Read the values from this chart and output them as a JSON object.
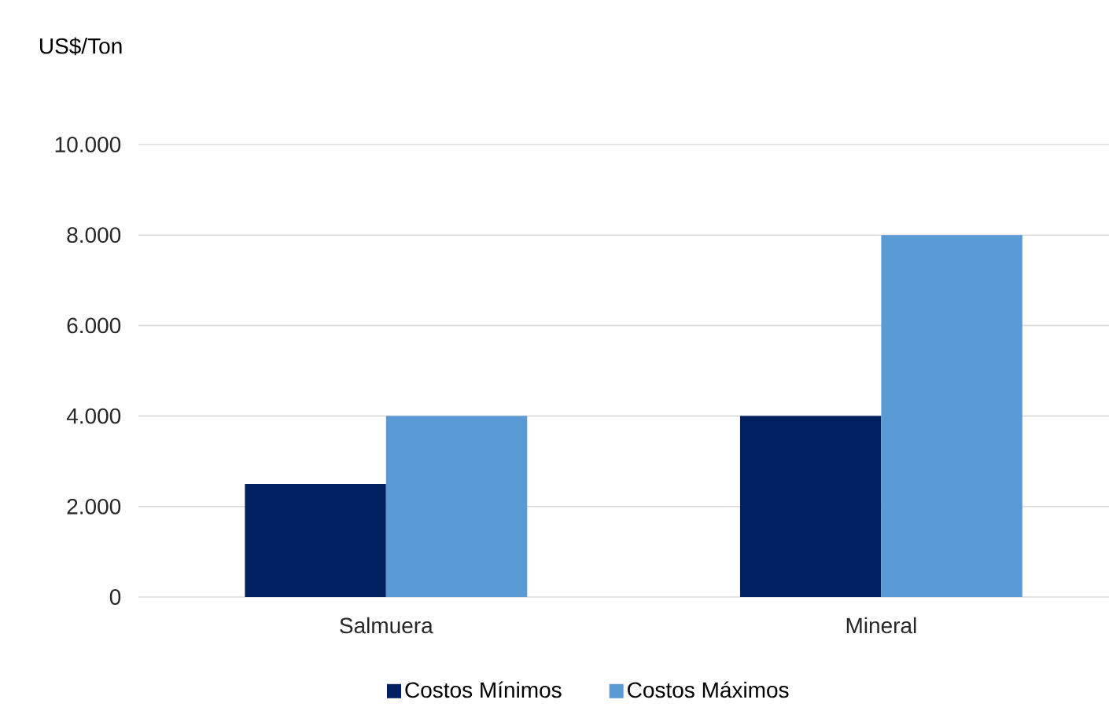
{
  "chart_data": {
    "type": "bar",
    "ylabel": "US$/Ton",
    "categories": [
      "Salmuera",
      "Mineral"
    ],
    "series": [
      {
        "name": "Costos Mínimos",
        "color": "#002060",
        "values": [
          2500,
          4000
        ]
      },
      {
        "name": "Costos Máximos",
        "color": "#5b9bd5",
        "values": [
          4000,
          8000
        ]
      }
    ],
    "ylim": [
      0,
      10000
    ],
    "yticks": [
      {
        "value": 0,
        "label": "0"
      },
      {
        "value": 2000,
        "label": "2.000"
      },
      {
        "value": 4000,
        "label": "4.000"
      },
      {
        "value": 6000,
        "label": "6.000"
      },
      {
        "value": 8000,
        "label": "8.000"
      },
      {
        "value": 10000,
        "label": "10.000"
      }
    ],
    "grid": "y",
    "legend": "bottom"
  }
}
